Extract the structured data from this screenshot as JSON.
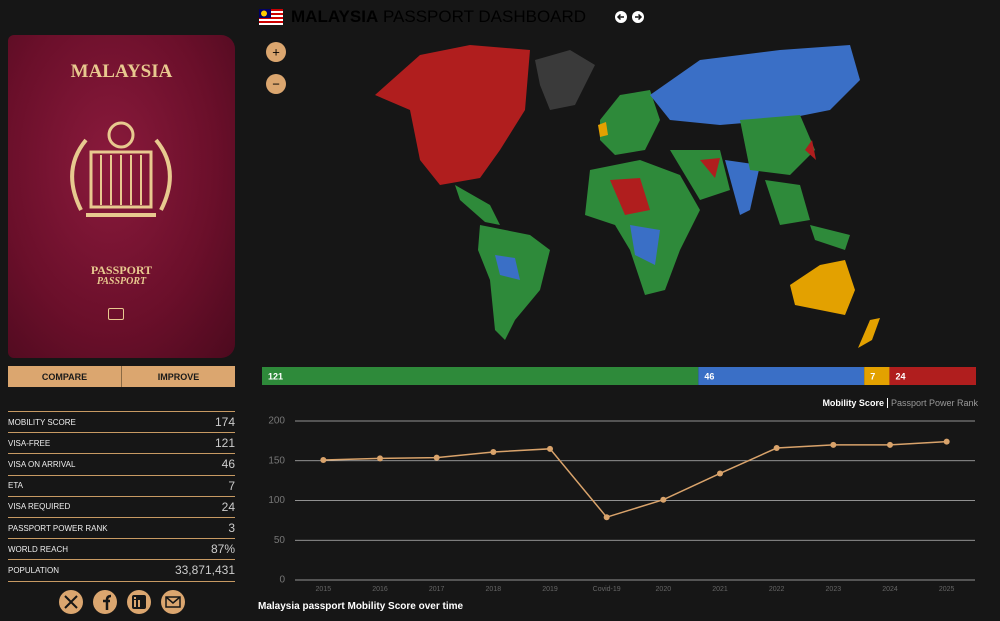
{
  "header": {
    "title_bold": "MALAYSIA",
    "title_rest": "PASSPORT DASHBOARD"
  },
  "passport": {
    "country": "MALAYSIA",
    "label": "PASSPORT",
    "label_alt": "PASSPORT"
  },
  "buttons": [
    "COMPARE",
    "IMPROVE"
  ],
  "map_controls": [
    "+",
    "−"
  ],
  "stats": {
    "rows": [
      [
        "MOBILITY SCORE",
        "174"
      ],
      [
        "VISA-FREE",
        "121"
      ],
      [
        "VISA ON ARRIVAL",
        "46"
      ],
      [
        "ETA",
        "7"
      ],
      [
        "VISA REQUIRED",
        "24"
      ],
      [
        "PASSPORT POWER RANK",
        "3"
      ],
      [
        "WORLD REACH",
        "87%"
      ],
      [
        "POPULATION",
        "33,871,431"
      ]
    ]
  },
  "distribution": {
    "segments": [
      {
        "value": 121,
        "color": "#2e8a3a"
      },
      {
        "value": 46,
        "color": "#3a6fc6"
      },
      {
        "value": 7,
        "color": "#e3a100"
      },
      {
        "value": 24,
        "color": "#b01e1e"
      }
    ]
  },
  "chart_data": {
    "type": "line",
    "title": "Malaysia passport Mobility Score over time",
    "tabs": [
      "Mobility Score",
      "Passport Power Rank"
    ],
    "categories": [
      "2015",
      "2016",
      "2017",
      "2018",
      "2019",
      "Covid-19",
      "2020",
      "2021",
      "2022",
      "2023",
      "2024",
      "2025"
    ],
    "values": [
      151,
      153,
      154,
      161,
      165,
      79,
      101,
      134,
      166,
      170,
      170,
      174
    ],
    "color": "#d9a36b",
    "ylim": [
      0,
      200
    ],
    "yticks": [
      0,
      50,
      100,
      150,
      200
    ],
    "grid": true
  }
}
